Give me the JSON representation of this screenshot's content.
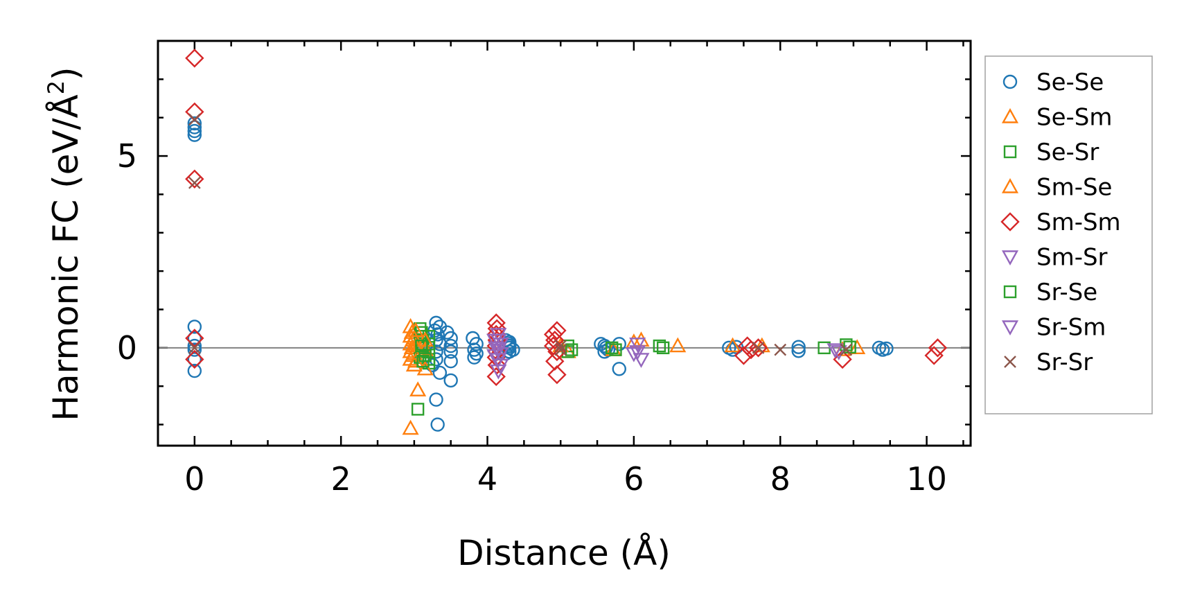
{
  "chart_data": {
    "type": "scatter",
    "title": "",
    "xlabel": "Distance (Å)",
    "ylabel_main": "Harmonic FC (eV/Å",
    "ylabel_sup": "2",
    "ylabel_close": ")",
    "xlim": [
      -0.5,
      10.6
    ],
    "ylim": [
      -2.55,
      8.0
    ],
    "xticks": [
      0,
      2,
      4,
      6,
      8,
      10
    ],
    "xtick_labels": [
      "0",
      "2",
      "4",
      "6",
      "8",
      "10"
    ],
    "yticks": [
      0,
      5
    ],
    "ytick_labels": [
      "0",
      "5"
    ],
    "x_minor_step": 0.5,
    "y_minor_step": 1,
    "reference_line_y": 0,
    "legend_position": "outside-right",
    "series": [
      {
        "name": "Se-Se",
        "marker": "circle",
        "color": "#1f77b4",
        "x": [
          0,
          0,
          0,
          0,
          0,
          0,
          0,
          0,
          0,
          0,
          3.3,
          3.35,
          3.28,
          3.32,
          3.3,
          3.35,
          3.3,
          3.3,
          3.25,
          3.35,
          3.3,
          3.32,
          3.45,
          3.5,
          3.5,
          3.5,
          3.5,
          3.5,
          3.8,
          3.85,
          3.82,
          3.85,
          3.82,
          4.25,
          4.3,
          4.3,
          4.3,
          4.35,
          4.3,
          4.25,
          4.3,
          5.55,
          5.6,
          5.62,
          5.65,
          5.6,
          5.8,
          5.8,
          7.3,
          7.35,
          7.4,
          8.25,
          8.25,
          9.35,
          9.45,
          9.4
        ],
        "y": [
          5.85,
          5.75,
          5.65,
          5.55,
          0.55,
          0.25,
          0.05,
          -0.05,
          -0.3,
          -0.6,
          0.65,
          0.55,
          0.45,
          0.35,
          0.2,
          0.1,
          -0.1,
          -0.3,
          -0.45,
          -0.65,
          -1.35,
          -2.0,
          0.4,
          0.25,
          0.05,
          -0.1,
          -0.35,
          -0.85,
          0.25,
          0.1,
          -0.05,
          -0.15,
          -0.25,
          0.2,
          0.15,
          0.05,
          0.0,
          -0.05,
          -0.1,
          -0.15,
          0.1,
          0.1,
          0.05,
          0.0,
          -0.05,
          -0.1,
          0.1,
          -0.55,
          0.0,
          -0.05,
          0.02,
          0.02,
          -0.08,
          0.0,
          -0.02,
          -0.05
        ]
      },
      {
        "name": "Se-Sm",
        "marker": "triangle-up",
        "color": "#ff7f0e",
        "x": [
          2.95,
          2.97,
          2.95,
          2.98,
          2.95,
          2.97,
          2.95,
          2.98,
          2.95,
          3.0,
          3.05,
          2.95,
          5.1,
          5.72,
          6.1,
          6.6,
          7.35,
          7.75,
          9.05
        ],
        "y": [
          0.55,
          0.4,
          0.3,
          0.2,
          0.1,
          0.0,
          -0.1,
          -0.2,
          -0.3,
          -0.45,
          -1.1,
          -2.1,
          -0.1,
          -0.05,
          0.2,
          0.05,
          0.05,
          0.05,
          0.0
        ]
      },
      {
        "name": "Se-Sr",
        "marker": "square",
        "color": "#2ca02c",
        "x": [
          3.08,
          3.1,
          3.08,
          3.12,
          3.1,
          3.12,
          3.1,
          3.08,
          3.2,
          3.2,
          3.2,
          3.2,
          3.2,
          3.05,
          5.1,
          5.1,
          5.7,
          5.75,
          6.35,
          8.6,
          8.9
        ],
        "y": [
          0.5,
          0.4,
          0.3,
          0.2,
          0.1,
          0.0,
          -0.1,
          -0.25,
          0.3,
          0.1,
          -0.1,
          -0.3,
          -0.4,
          -1.6,
          0.05,
          -0.1,
          0.0,
          -0.05,
          0.05,
          0.0,
          0.08
        ]
      },
      {
        "name": "Sm-Se",
        "marker": "triangle-up",
        "color": "#ff7f0e",
        "x": [
          3.02,
          3.0,
          3.02,
          3.0,
          3.02,
          3.15,
          3.15,
          3.15,
          5.0,
          6.0,
          8.85
        ],
        "y": [
          0.45,
          0.25,
          0.05,
          -0.15,
          -0.35,
          0.2,
          -0.05,
          -0.55,
          0.05,
          0.15,
          -0.05
        ]
      },
      {
        "name": "Sm-Sm",
        "marker": "diamond",
        "color": "#d62728",
        "x": [
          0,
          0,
          0,
          0,
          0,
          4.12,
          4.13,
          4.12,
          4.13,
          4.12,
          4.13,
          4.12,
          4.13,
          4.12,
          4.9,
          4.95,
          4.92,
          4.9,
          4.95,
          4.92,
          4.95,
          7.55,
          7.6,
          7.5,
          7.7,
          8.85,
          10.15,
          10.1
        ],
        "y": [
          7.55,
          6.15,
          4.4,
          0.25,
          -0.3,
          0.65,
          0.5,
          0.35,
          0.2,
          0.05,
          -0.1,
          -0.25,
          -0.45,
          -0.75,
          0.35,
          0.45,
          0.2,
          0.05,
          -0.1,
          -0.35,
          -0.7,
          0.05,
          -0.05,
          -0.2,
          0.0,
          -0.3,
          0.0,
          -0.2
        ]
      },
      {
        "name": "Sm-Sr",
        "marker": "triangle-down",
        "color": "#9467bd",
        "x": [
          4.15,
          4.15,
          4.18,
          4.15,
          4.18,
          4.15,
          4.18,
          4.15,
          6.05,
          6.05,
          6.1,
          8.8
        ],
        "y": [
          0.35,
          0.2,
          0.1,
          -0.05,
          -0.15,
          -0.3,
          -0.45,
          -0.6,
          0.1,
          -0.1,
          -0.3,
          -0.1
        ]
      },
      {
        "name": "Sr-Se",
        "marker": "square",
        "color": "#2ca02c",
        "x": [
          3.1,
          3.15,
          3.12,
          5.15,
          6.4,
          8.95
        ],
        "y": [
          0.05,
          -0.2,
          -0.35,
          -0.05,
          0.0,
          0.02
        ]
      },
      {
        "name": "Sr-Sm",
        "marker": "triangle-down",
        "color": "#9467bd",
        "x": [
          4.1,
          4.12,
          4.1,
          6.0,
          8.75
        ],
        "y": [
          0.2,
          0.0,
          -0.2,
          -0.15,
          -0.05
        ]
      },
      {
        "name": "Sr-Sr",
        "marker": "x",
        "color": "#8c564b",
        "x": [
          0,
          0,
          0,
          5.0,
          5.0,
          7.7,
          8.0,
          8.9
        ],
        "y": [
          5.95,
          4.3,
          0.0,
          0.05,
          -0.05,
          0.0,
          -0.05,
          -0.05
        ]
      }
    ]
  }
}
